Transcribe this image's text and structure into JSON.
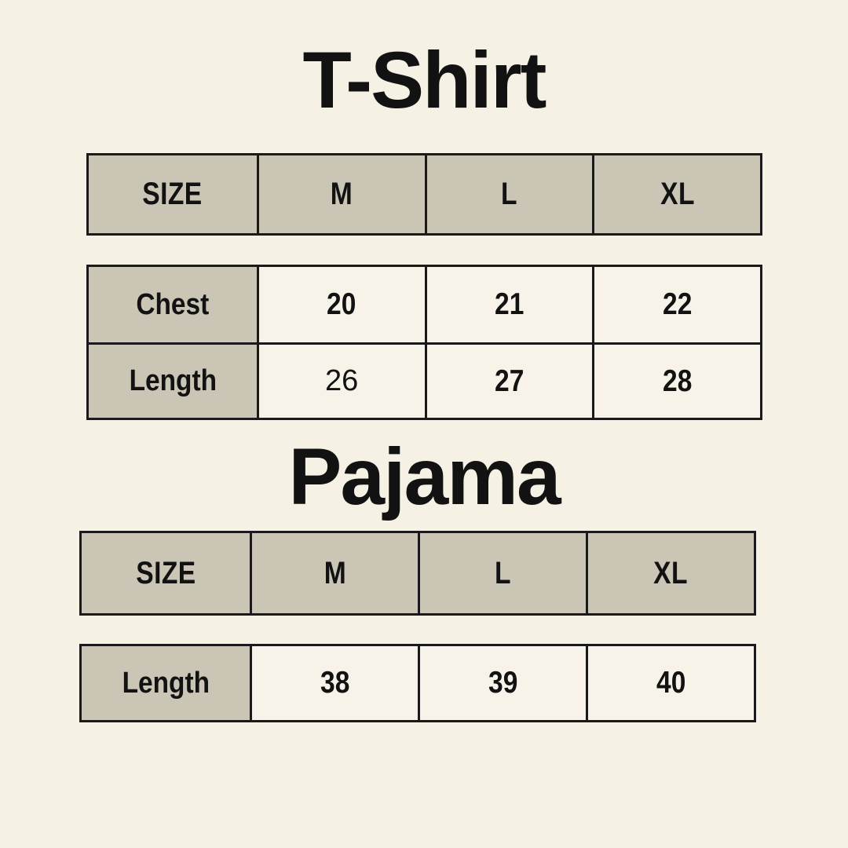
{
  "style": {
    "background": "#F5F1E4",
    "border_line": "#1A1A1A",
    "header_cell_bg": "#CBC5B5",
    "value_cell_bg": "#F7F3E8",
    "text_color": "#121212"
  },
  "chart_data": [
    {
      "type": "table",
      "title": "T-Shirt",
      "columns": [
        "SIZE",
        "M",
        "L",
        "XL"
      ],
      "rows": [
        [
          "Chest",
          "20",
          "21",
          "22"
        ],
        [
          "Length",
          "26",
          "27",
          "28"
        ]
      ]
    },
    {
      "type": "table",
      "title": "Pajama",
      "columns": [
        "SIZE",
        "M",
        "L",
        "XL"
      ],
      "rows": [
        [
          "Length",
          "38",
          "39",
          "40"
        ]
      ]
    }
  ]
}
